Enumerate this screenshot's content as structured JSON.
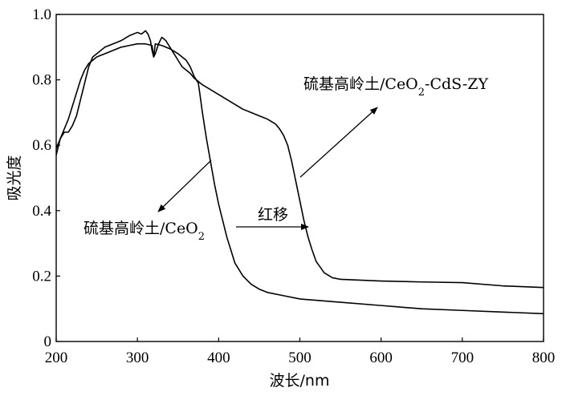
{
  "chart_data": {
    "type": "line",
    "title": "",
    "xlabel": "波长/nm",
    "ylabel": "吸光度",
    "xlim": [
      200,
      800
    ],
    "ylim": [
      0,
      1.0
    ],
    "x_ticks": [
      200,
      300,
      400,
      500,
      600,
      700,
      800
    ],
    "y_ticks": [
      0,
      0.2,
      0.4,
      0.6,
      0.8,
      1.0
    ],
    "x_tick_labels": [
      "200",
      "300",
      "400",
      "500",
      "600",
      "700",
      "800"
    ],
    "y_tick_labels": [
      "0",
      "0.2",
      "0.4",
      "0.6",
      "0.8",
      "1.0"
    ],
    "grid": false,
    "series": [
      {
        "name": "硫基高岭土/CeO2",
        "points": [
          [
            200,
            0.59
          ],
          [
            205,
            0.62
          ],
          [
            210,
            0.65
          ],
          [
            215,
            0.68
          ],
          [
            220,
            0.72
          ],
          [
            225,
            0.76
          ],
          [
            230,
            0.8
          ],
          [
            235,
            0.83
          ],
          [
            240,
            0.85
          ],
          [
            250,
            0.87
          ],
          [
            260,
            0.88
          ],
          [
            270,
            0.89
          ],
          [
            280,
            0.9
          ],
          [
            290,
            0.905
          ],
          [
            300,
            0.91
          ],
          [
            310,
            0.91
          ],
          [
            318,
            0.905
          ],
          [
            320,
            0.87
          ],
          [
            322,
            0.91
          ],
          [
            330,
            0.905
          ],
          [
            340,
            0.895
          ],
          [
            350,
            0.88
          ],
          [
            360,
            0.86
          ],
          [
            365,
            0.84
          ],
          [
            370,
            0.81
          ],
          [
            375,
            0.79
          ],
          [
            377,
            0.755
          ],
          [
            380,
            0.7
          ],
          [
            385,
            0.62
          ],
          [
            390,
            0.55
          ],
          [
            395,
            0.48
          ],
          [
            400,
            0.42
          ],
          [
            405,
            0.37
          ],
          [
            410,
            0.32
          ],
          [
            415,
            0.28
          ],
          [
            420,
            0.24
          ],
          [
            430,
            0.2
          ],
          [
            440,
            0.175
          ],
          [
            450,
            0.16
          ],
          [
            460,
            0.15
          ],
          [
            480,
            0.14
          ],
          [
            500,
            0.13
          ],
          [
            550,
            0.12
          ],
          [
            600,
            0.11
          ],
          [
            650,
            0.1
          ],
          [
            700,
            0.095
          ],
          [
            750,
            0.09
          ],
          [
            800,
            0.085
          ]
        ]
      },
      {
        "name": "硫基高岭土/CeO2-CdS-ZY",
        "points": [
          [
            200,
            0.57
          ],
          [
            205,
            0.62
          ],
          [
            210,
            0.64
          ],
          [
            215,
            0.64
          ],
          [
            220,
            0.66
          ],
          [
            225,
            0.69
          ],
          [
            230,
            0.74
          ],
          [
            235,
            0.79
          ],
          [
            240,
            0.84
          ],
          [
            245,
            0.87
          ],
          [
            250,
            0.88
          ],
          [
            260,
            0.9
          ],
          [
            270,
            0.91
          ],
          [
            280,
            0.92
          ],
          [
            290,
            0.935
          ],
          [
            300,
            0.945
          ],
          [
            305,
            0.94
          ],
          [
            310,
            0.95
          ],
          [
            313,
            0.94
          ],
          [
            316,
            0.92
          ],
          [
            318,
            0.89
          ],
          [
            320,
            0.87
          ],
          [
            322,
            0.88
          ],
          [
            326,
            0.91
          ],
          [
            330,
            0.93
          ],
          [
            335,
            0.92
          ],
          [
            340,
            0.9
          ],
          [
            345,
            0.88
          ],
          [
            350,
            0.86
          ],
          [
            355,
            0.84
          ],
          [
            360,
            0.83
          ],
          [
            365,
            0.82
          ],
          [
            370,
            0.805
          ],
          [
            375,
            0.795
          ],
          [
            380,
            0.785
          ],
          [
            390,
            0.77
          ],
          [
            400,
            0.755
          ],
          [
            410,
            0.74
          ],
          [
            420,
            0.725
          ],
          [
            430,
            0.71
          ],
          [
            440,
            0.7
          ],
          [
            450,
            0.69
          ],
          [
            460,
            0.68
          ],
          [
            470,
            0.665
          ],
          [
            475,
            0.65
          ],
          [
            480,
            0.63
          ],
          [
            485,
            0.6
          ],
          [
            490,
            0.55
          ],
          [
            495,
            0.49
          ],
          [
            500,
            0.43
          ],
          [
            505,
            0.37
          ],
          [
            510,
            0.32
          ],
          [
            515,
            0.28
          ],
          [
            520,
            0.245
          ],
          [
            530,
            0.21
          ],
          [
            540,
            0.195
          ],
          [
            550,
            0.19
          ],
          [
            600,
            0.185
          ],
          [
            650,
            0.182
          ],
          [
            700,
            0.18
          ],
          [
            750,
            0.17
          ],
          [
            800,
            0.165
          ]
        ]
      }
    ],
    "annotations": [
      {
        "id": "label-cdszy",
        "text": "硫基高岭土/CeO2-CdS-ZY"
      },
      {
        "id": "label-ceo2",
        "text": "硫基高岭土/CeO2"
      },
      {
        "id": "label-redshift",
        "text": "红移"
      }
    ]
  }
}
